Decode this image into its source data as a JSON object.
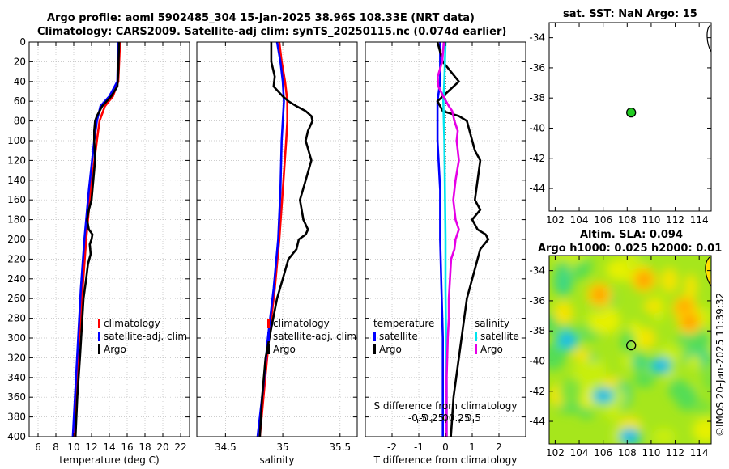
{
  "titles": {
    "line1": "Argo profile: aoml 5902485_304 15-Jan-2025 38.96S 108.33E (NRT data)",
    "line2": "Climatology: CARS2009. Satellite-adj clim: synTS_20250115.nc (0.074d earlier)",
    "map1": "sat. SST: NaN Argo: 15",
    "map2a": "Altim. SLA: 0.094",
    "map2b": "Argo h1000: 0.025 h2000: 0.01"
  },
  "watermark": "©IMOS 20-Jan-2025 11:39:32",
  "colors": {
    "clim": "#ff0000",
    "sat": "#0000ff",
    "argo": "#000000",
    "sat_s": "#00e5ee",
    "argo_s": "#e600e6",
    "dot": "#22cc22"
  },
  "chart_data": [
    {
      "id": "temperature",
      "type": "line",
      "xlabel": "temperature (deg C)",
      "ylim": [
        0,
        400
      ],
      "xlim": [
        5,
        23
      ],
      "xticks": [
        6,
        8,
        10,
        12,
        14,
        16,
        18,
        20,
        22
      ],
      "yticks": [
        0,
        20,
        40,
        60,
        80,
        100,
        120,
        140,
        160,
        180,
        200,
        220,
        240,
        260,
        280,
        300,
        320,
        340,
        360,
        380,
        400
      ],
      "legend": [
        "climatology",
        "satellite-adj. clim",
        "Argo"
      ],
      "legend_loc": "right",
      "series": [
        {
          "name": "climatology",
          "color": "#ff0000",
          "depth": [
            0,
            40,
            55,
            65,
            80,
            100,
            150,
            200,
            250,
            300,
            350,
            400
          ],
          "values": [
            15.2,
            15.0,
            14.4,
            13.5,
            12.9,
            12.6,
            11.9,
            11.4,
            11.0,
            10.6,
            10.3,
            10.0
          ]
        },
        {
          "name": "satellite-adj. clim",
          "color": "#0000ff",
          "depth": [
            0,
            40,
            55,
            65,
            80,
            100,
            150,
            200,
            250,
            300,
            350,
            400
          ],
          "values": [
            15.0,
            14.9,
            14.0,
            13.0,
            12.6,
            12.3,
            11.7,
            11.2,
            10.8,
            10.5,
            10.2,
            9.9
          ]
        },
        {
          "name": "Argo",
          "color": "#000000",
          "depth": [
            0,
            30,
            45,
            55,
            65,
            75,
            80,
            90,
            100,
            120,
            140,
            160,
            170,
            180,
            190,
            195,
            200,
            205,
            215,
            225,
            240,
            260,
            290,
            320,
            360,
            400
          ],
          "values": [
            15.1,
            15.0,
            14.9,
            14.2,
            13.2,
            12.6,
            12.4,
            12.3,
            12.3,
            12.4,
            12.2,
            12.0,
            11.7,
            11.5,
            11.7,
            12.1,
            12.0,
            11.8,
            11.9,
            11.6,
            11.4,
            11.1,
            10.9,
            10.7,
            10.4,
            10.2
          ]
        }
      ]
    },
    {
      "id": "salinity",
      "type": "line",
      "xlabel": "salinity",
      "ylim": [
        0,
        400
      ],
      "xlim": [
        34.25,
        35.65
      ],
      "xticks": [
        34.5,
        35,
        35.5
      ],
      "xticklabels": [
        "34.5",
        "35",
        "35.5"
      ],
      "legend": [
        "climatology",
        "satellite-adj. clim",
        "Argo"
      ],
      "legend_loc": "right",
      "series": [
        {
          "name": "climatology",
          "color": "#ff0000",
          "depth": [
            0,
            20,
            40,
            60,
            80,
            100,
            150,
            200,
            250,
            300,
            350,
            400
          ],
          "values": [
            34.97,
            34.99,
            35.02,
            35.04,
            35.04,
            35.03,
            35.0,
            34.97,
            34.93,
            34.88,
            34.84,
            34.8
          ]
        },
        {
          "name": "satellite-adj. clim",
          "color": "#0000ff",
          "depth": [
            0,
            20,
            40,
            60,
            80,
            100,
            150,
            200,
            250,
            300,
            350,
            400
          ],
          "values": [
            34.95,
            34.98,
            35.0,
            35.01,
            35.0,
            34.99,
            34.98,
            34.96,
            34.92,
            34.87,
            34.83,
            34.78
          ]
        },
        {
          "name": "Argo",
          "color": "#000000",
          "depth": [
            0,
            20,
            35,
            45,
            55,
            60,
            65,
            70,
            75,
            80,
            90,
            100,
            120,
            140,
            160,
            180,
            190,
            195,
            200,
            210,
            220,
            240,
            260,
            290,
            320,
            360,
            400
          ],
          "values": [
            34.9,
            34.9,
            34.93,
            34.92,
            35.0,
            35.05,
            35.12,
            35.2,
            35.25,
            35.26,
            35.22,
            35.2,
            35.25,
            35.2,
            35.15,
            35.18,
            35.22,
            35.2,
            35.14,
            35.12,
            35.05,
            35.0,
            34.95,
            34.9,
            34.85,
            34.82,
            34.8
          ]
        }
      ]
    },
    {
      "id": "difference",
      "type": "line",
      "xlabel": "T difference from climatology",
      "xlabel_top": "S difference from climatology",
      "ylim": [
        0,
        400
      ],
      "xlim": [
        -3,
        3
      ],
      "xticks": [
        -2,
        -1,
        0,
        1,
        2
      ],
      "xticklabels": [
        "-2",
        "-1",
        "0",
        "1",
        "2"
      ],
      "sticks": [
        -0.5,
        -0.25,
        0,
        0.25,
        0.5
      ],
      "sticklabels": [
        "-0.5",
        "-0.25",
        "0",
        "0.25",
        "0.5"
      ],
      "legend_t": [
        "temperature",
        "satellite",
        "Argo"
      ],
      "legend_s": [
        "salinity",
        "satellite",
        "Argo"
      ],
      "series": [
        {
          "name": "temperature satellite",
          "color": "#0000ff",
          "depth": [
            0,
            40,
            60,
            80,
            100,
            150,
            200,
            250,
            300,
            350,
            400
          ],
          "values": [
            -0.2,
            -0.2,
            -0.3,
            -0.3,
            -0.3,
            -0.2,
            -0.2,
            -0.15,
            -0.1,
            -0.1,
            -0.1
          ]
        },
        {
          "name": "temperature Argo",
          "color": "#000000",
          "depth": [
            0,
            20,
            40,
            50,
            60,
            70,
            75,
            80,
            90,
            100,
            110,
            120,
            140,
            160,
            170,
            180,
            190,
            195,
            200,
            210,
            220,
            240,
            260,
            280,
            300,
            320,
            340,
            360,
            380,
            400
          ],
          "values": [
            -0.3,
            -0.1,
            0.5,
            0.1,
            -0.3,
            -0.1,
            0.5,
            0.8,
            0.9,
            1.0,
            1.1,
            1.3,
            1.2,
            1.1,
            1.3,
            1.0,
            1.2,
            1.5,
            1.6,
            1.3,
            1.2,
            1.0,
            0.8,
            0.7,
            0.6,
            0.5,
            0.4,
            0.3,
            0.25,
            0.2
          ]
        },
        {
          "name": "salinity satellite",
          "color": "#00e5ee",
          "depth": [
            0,
            40,
            60,
            80,
            100,
            150,
            200,
            250,
            300,
            350,
            400
          ],
          "values": [
            0.0,
            -0.02,
            -0.04,
            -0.03,
            -0.02,
            -0.01,
            0.0,
            0.0,
            0.01,
            0.02,
            0.02
          ]
        },
        {
          "name": "salinity Argo",
          "color": "#e600e6",
          "depth": [
            0,
            20,
            35,
            45,
            55,
            65,
            70,
            80,
            90,
            100,
            120,
            140,
            160,
            180,
            190,
            200,
            210,
            220,
            240,
            260,
            280,
            300,
            320,
            340,
            360,
            380,
            400
          ],
          "values": [
            -0.03,
            -0.06,
            -0.14,
            -0.13,
            -0.04,
            0.06,
            0.12,
            0.16,
            0.22,
            0.2,
            0.24,
            0.18,
            0.14,
            0.18,
            0.24,
            0.18,
            0.16,
            0.1,
            0.08,
            0.06,
            0.06,
            0.04,
            0.03,
            0.02,
            0.02,
            0.02,
            0.02
          ]
        }
      ]
    },
    {
      "id": "map_sst",
      "type": "scatter",
      "title": "sat. SST: NaN Argo: 15",
      "xlim": [
        101.5,
        115
      ],
      "ylim": [
        -45.5,
        -33
      ],
      "xticks": [
        102,
        104,
        106,
        108,
        110,
        112,
        114
      ],
      "yticks": [
        -34,
        -36,
        -38,
        -40,
        -42,
        -44
      ],
      "points": [
        {
          "x": 108.33,
          "y": -38.96,
          "label": "Argo"
        }
      ]
    },
    {
      "id": "map_sla",
      "type": "heatmap",
      "title": "Altim. SLA: 0.094 / Argo h1000: 0.025 h2000: 0.01",
      "xlim": [
        101.5,
        115
      ],
      "ylim": [
        -45.5,
        -33
      ],
      "xticks": [
        102,
        104,
        106,
        108,
        110,
        112,
        114
      ],
      "yticks": [
        -34,
        -36,
        -38,
        -40,
        -42,
        -44
      ],
      "points": [
        {
          "x": 108.33,
          "y": -38.96,
          "label": "Argo"
        }
      ],
      "highs": [
        {
          "x": 105.7,
          "y": -35.6
        },
        {
          "x": 109.4,
          "y": -34.6
        },
        {
          "x": 112.8,
          "y": -36.5
        },
        {
          "x": 113.2,
          "y": -37.4
        }
      ],
      "lows": [
        {
          "x": 108.2,
          "y": -45.0
        },
        {
          "x": 106.0,
          "y": -42.3
        },
        {
          "x": 103.0,
          "y": -38.6
        },
        {
          "x": 110.8,
          "y": -40.3
        }
      ]
    }
  ]
}
